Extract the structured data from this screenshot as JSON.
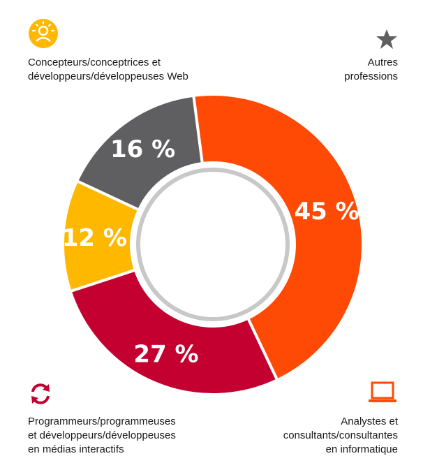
{
  "chart_data": {
    "type": "pie",
    "donut": true,
    "title": "",
    "slices": [
      {
        "label_lines": [
          "Autres",
          "professions"
        ],
        "value": 16,
        "display": "16 %",
        "color": "#5f5f61",
        "icon": "star-icon"
      },
      {
        "label_lines": [
          "Analystes et",
          "consultants/consultantes",
          "en informatique"
        ],
        "value": 45,
        "display": "45 %",
        "color": "#ff4a06",
        "icon": "laptop-icon"
      },
      {
        "label_lines": [
          "Programmeurs/programmeuses",
          "et développeurs/développeuses",
          "en médias interactifs"
        ],
        "value": 27,
        "display": "27 %",
        "color": "#c3002f",
        "icon": "refresh-arrows-icon"
      },
      {
        "label_lines": [
          "Concepteurs/conceptrices et",
          "développeurs/développeuses Web"
        ],
        "value": 12,
        "display": "12 %",
        "color": "#ffb800",
        "icon": "designer-person-icon"
      }
    ],
    "inner_ring_color": "#c8c8c8"
  }
}
